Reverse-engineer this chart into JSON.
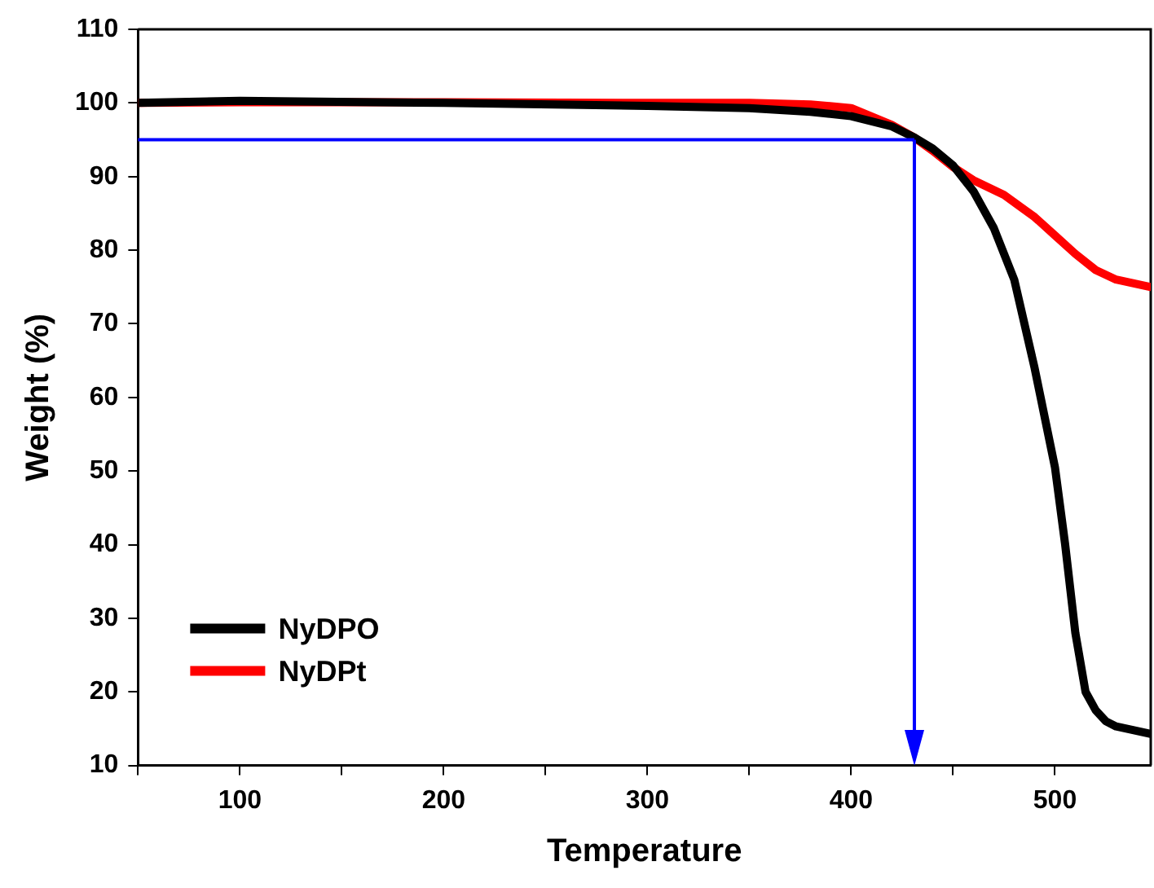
{
  "chart_data": {
    "type": "line",
    "xlabel": "Temperature",
    "ylabel": "Weight (%)",
    "xlim": [
      50,
      547
    ],
    "ylim": [
      10,
      110
    ],
    "xticks": [
      {
        "value": 50,
        "label": null
      },
      100,
      {
        "value": 150,
        "label": null
      },
      200,
      {
        "value": 250,
        "label": null
      },
      300,
      {
        "value": 350,
        "label": null
      },
      400,
      {
        "value": 450,
        "label": null
      },
      500
    ],
    "yticks": [
      10,
      20,
      30,
      40,
      50,
      60,
      70,
      80,
      90,
      100,
      110
    ],
    "legend": "bottom left",
    "marker": "none",
    "line_style": "solid",
    "grid": false,
    "ref_lines": [
      {
        "axis": "y",
        "value": 95,
        "color": "#0000ff"
      },
      {
        "axis": "x",
        "value": 431,
        "color": "#0000ff"
      }
    ],
    "series": [
      {
        "name": "NyDPO",
        "color": "#000000",
        "x": [
          50,
          100,
          200,
          300,
          350,
          380,
          400,
          420,
          431,
          440,
          450,
          460,
          470,
          480,
          490,
          500,
          505,
          510,
          515,
          520,
          525,
          530,
          547
        ],
        "values": [
          100,
          100.3,
          100,
          99.6,
          99.3,
          98.8,
          98.2,
          96.8,
          95.3,
          93.8,
          91.5,
          88,
          83,
          76,
          64,
          50.5,
          40,
          28,
          20,
          17.5,
          16,
          15.3,
          14.3
        ]
      },
      {
        "name": "NyDPt",
        "color": "#ff0000",
        "x": [
          50,
          100,
          200,
          300,
          350,
          380,
          400,
          420,
          431,
          440,
          450,
          460,
          475,
          490,
          500,
          510,
          520,
          530,
          547
        ],
        "values": [
          100,
          100.1,
          100.1,
          100,
          100,
          99.8,
          99.3,
          97,
          95.3,
          93.5,
          91.3,
          89.5,
          87.5,
          84.5,
          82,
          79.5,
          77.3,
          76,
          75
        ]
      }
    ]
  }
}
